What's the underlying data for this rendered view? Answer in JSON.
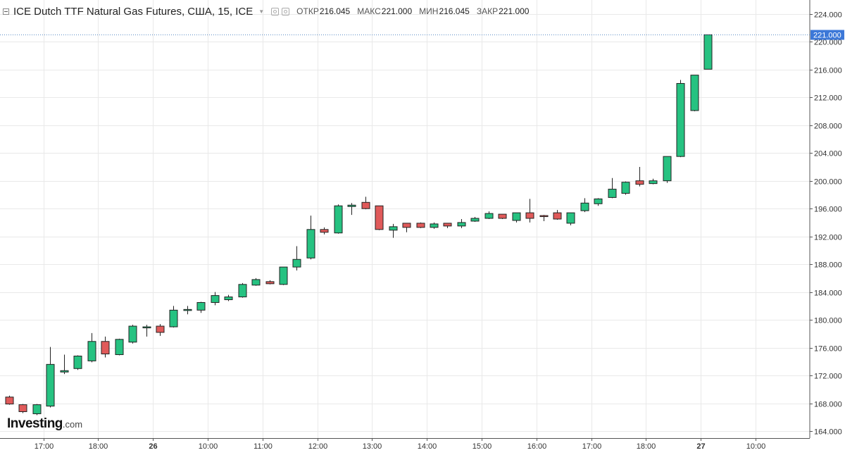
{
  "header": {
    "title": "ICE Dutch TTF Natural Gas Futures, США, 15, ICE",
    "open_label": "ОТКР",
    "open_value": "216.045",
    "high_label": "МАКС",
    "high_value": "221.000",
    "low_label": "МИН",
    "low_value": "216.045",
    "close_label": "ЗАКР",
    "close_value": "221.000"
  },
  "logo": {
    "brand": "Investing",
    "suffix": ".com"
  },
  "colors": {
    "up": "#26c281",
    "down": "#e05a5a",
    "wick": "#222222",
    "grid": "#e9e9e9",
    "axis": "#555555",
    "price_line": "#5b8cc5",
    "price_tag": "#3c78d8"
  },
  "chart_data": {
    "type": "candlestick",
    "title": "ICE Dutch TTF Natural Gas Futures, США, 15, ICE",
    "ylim": [
      163,
      226
    ],
    "y_ticks": [
      "164.000",
      "168.000",
      "172.000",
      "176.000",
      "180.000",
      "184.000",
      "188.000",
      "192.000",
      "196.000",
      "200.000",
      "204.000",
      "208.000",
      "212.000",
      "216.000",
      "220.000",
      "224.000"
    ],
    "x_ticks": [
      {
        "label": "17:00",
        "i": 2,
        "bold": false
      },
      {
        "label": "18:00",
        "i": 6,
        "bold": false
      },
      {
        "label": "26",
        "i": 10,
        "bold": true
      },
      {
        "label": "10:00",
        "i": 14,
        "bold": false
      },
      {
        "label": "11:00",
        "i": 18,
        "bold": false
      },
      {
        "label": "12:00",
        "i": 22,
        "bold": false
      },
      {
        "label": "13:00",
        "i": 26,
        "bold": false
      },
      {
        "label": "14:00",
        "i": 30,
        "bold": false
      },
      {
        "label": "15:00",
        "i": 34,
        "bold": false
      },
      {
        "label": "16:00",
        "i": 38,
        "bold": false
      },
      {
        "label": "17:00",
        "i": 42,
        "bold": false
      },
      {
        "label": "18:00",
        "i": 46,
        "bold": false
      },
      {
        "label": "27",
        "i": 50,
        "bold": true
      },
      {
        "label": "10:00",
        "i": 54,
        "bold": false
      }
    ],
    "current_price": "221.000",
    "candles": [
      {
        "o": 168.9,
        "h": 169.1,
        "l": 167.8,
        "c": 167.9
      },
      {
        "o": 167.8,
        "h": 167.9,
        "l": 166.6,
        "c": 166.8
      },
      {
        "o": 166.5,
        "h": 167.9,
        "l": 166.3,
        "c": 167.8
      },
      {
        "o": 167.6,
        "h": 176.1,
        "l": 167.4,
        "c": 173.6
      },
      {
        "o": 172.5,
        "h": 175.0,
        "l": 172.2,
        "c": 172.7
      },
      {
        "o": 173.0,
        "h": 174.9,
        "l": 172.8,
        "c": 174.8
      },
      {
        "o": 174.1,
        "h": 178.1,
        "l": 173.9,
        "c": 176.9
      },
      {
        "o": 176.9,
        "h": 177.6,
        "l": 174.6,
        "c": 175.1
      },
      {
        "o": 175.0,
        "h": 177.3,
        "l": 174.9,
        "c": 177.2
      },
      {
        "o": 176.8,
        "h": 179.3,
        "l": 176.6,
        "c": 179.1
      },
      {
        "o": 178.9,
        "h": 179.3,
        "l": 177.6,
        "c": 179.0
      },
      {
        "o": 179.1,
        "h": 179.4,
        "l": 177.7,
        "c": 178.2
      },
      {
        "o": 179.0,
        "h": 182.0,
        "l": 178.9,
        "c": 181.4
      },
      {
        "o": 181.4,
        "h": 182.0,
        "l": 180.8,
        "c": 181.5
      },
      {
        "o": 181.4,
        "h": 182.6,
        "l": 181.0,
        "c": 182.5
      },
      {
        "o": 182.5,
        "h": 184.0,
        "l": 182.1,
        "c": 183.5
      },
      {
        "o": 182.9,
        "h": 183.6,
        "l": 182.7,
        "c": 183.3
      },
      {
        "o": 183.3,
        "h": 185.3,
        "l": 183.2,
        "c": 185.1
      },
      {
        "o": 185.0,
        "h": 186.0,
        "l": 184.9,
        "c": 185.8
      },
      {
        "o": 185.5,
        "h": 185.7,
        "l": 185.1,
        "c": 185.2
      },
      {
        "o": 185.1,
        "h": 187.6,
        "l": 185.0,
        "c": 187.6
      },
      {
        "o": 187.6,
        "h": 190.6,
        "l": 187.1,
        "c": 188.7
      },
      {
        "o": 188.9,
        "h": 195.0,
        "l": 188.7,
        "c": 193.0
      },
      {
        "o": 193.0,
        "h": 193.3,
        "l": 192.3,
        "c": 192.6
      },
      {
        "o": 192.5,
        "h": 196.6,
        "l": 192.4,
        "c": 196.4
      },
      {
        "o": 196.3,
        "h": 196.8,
        "l": 195.1,
        "c": 196.5
      },
      {
        "o": 196.9,
        "h": 197.7,
        "l": 195.9,
        "c": 196.0
      },
      {
        "o": 196.4,
        "h": 196.4,
        "l": 192.9,
        "c": 193.0
      },
      {
        "o": 192.9,
        "h": 193.8,
        "l": 191.8,
        "c": 193.4
      },
      {
        "o": 193.9,
        "h": 193.9,
        "l": 192.6,
        "c": 193.3
      },
      {
        "o": 193.9,
        "h": 194.0,
        "l": 193.2,
        "c": 193.3
      },
      {
        "o": 193.3,
        "h": 194.0,
        "l": 193.1,
        "c": 193.8
      },
      {
        "o": 193.9,
        "h": 193.9,
        "l": 193.2,
        "c": 193.5
      },
      {
        "o": 193.5,
        "h": 194.5,
        "l": 193.2,
        "c": 194.0
      },
      {
        "o": 194.2,
        "h": 194.8,
        "l": 194.1,
        "c": 194.6
      },
      {
        "o": 194.6,
        "h": 195.6,
        "l": 194.5,
        "c": 195.3
      },
      {
        "o": 195.2,
        "h": 195.2,
        "l": 194.5,
        "c": 194.6
      },
      {
        "o": 194.3,
        "h": 195.4,
        "l": 194.0,
        "c": 195.4
      },
      {
        "o": 195.4,
        "h": 197.4,
        "l": 194.0,
        "c": 194.6
      },
      {
        "o": 195.0,
        "h": 195.1,
        "l": 194.2,
        "c": 194.9
      },
      {
        "o": 195.4,
        "h": 195.8,
        "l": 194.4,
        "c": 194.5
      },
      {
        "o": 193.9,
        "h": 195.4,
        "l": 193.6,
        "c": 195.4
      },
      {
        "o": 195.7,
        "h": 197.5,
        "l": 195.5,
        "c": 196.8
      },
      {
        "o": 196.7,
        "h": 197.5,
        "l": 196.4,
        "c": 197.4
      },
      {
        "o": 197.6,
        "h": 200.4,
        "l": 197.5,
        "c": 198.8
      },
      {
        "o": 198.2,
        "h": 199.9,
        "l": 198.0,
        "c": 199.8
      },
      {
        "o": 200.0,
        "h": 202.0,
        "l": 199.2,
        "c": 199.5
      },
      {
        "o": 199.6,
        "h": 200.3,
        "l": 199.5,
        "c": 200.0
      },
      {
        "o": 200.0,
        "h": 203.5,
        "l": 199.7,
        "c": 203.5
      },
      {
        "o": 203.5,
        "h": 214.5,
        "l": 203.4,
        "c": 214.0
      },
      {
        "o": 210.1,
        "h": 215.2,
        "l": 210.0,
        "c": 215.2
      },
      {
        "o": 216.045,
        "h": 221.0,
        "l": 216.045,
        "c": 221.0
      }
    ]
  }
}
